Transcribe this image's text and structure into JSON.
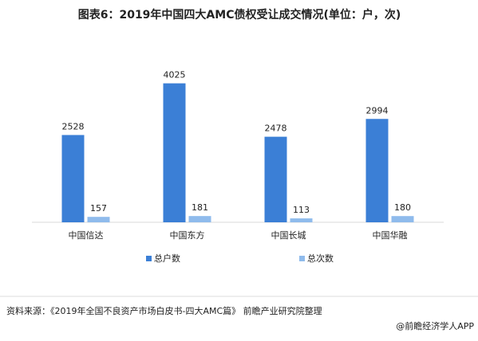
{
  "chart_data": {
    "type": "bar",
    "title": "图表6：2019年中国四大AMC债权受让成交情况(单位：户，次)",
    "categories": [
      "中国信达",
      "中国东方",
      "中国长城",
      "中国华融"
    ],
    "series": [
      {
        "name": "总户数",
        "color": "#3b7fd6",
        "values": [
          2528,
          4025,
          2478,
          2994
        ]
      },
      {
        "name": "总次数",
        "color": "#8fbbec",
        "values": [
          157,
          181,
          113,
          180
        ]
      }
    ],
    "ylim": [
      0,
      4500
    ],
    "source": "资料来源：《2019年全国不良资产市场白皮书-四大AMC篇》 前瞻产业研究院整理",
    "brand": "@前瞻经济学人APP"
  }
}
